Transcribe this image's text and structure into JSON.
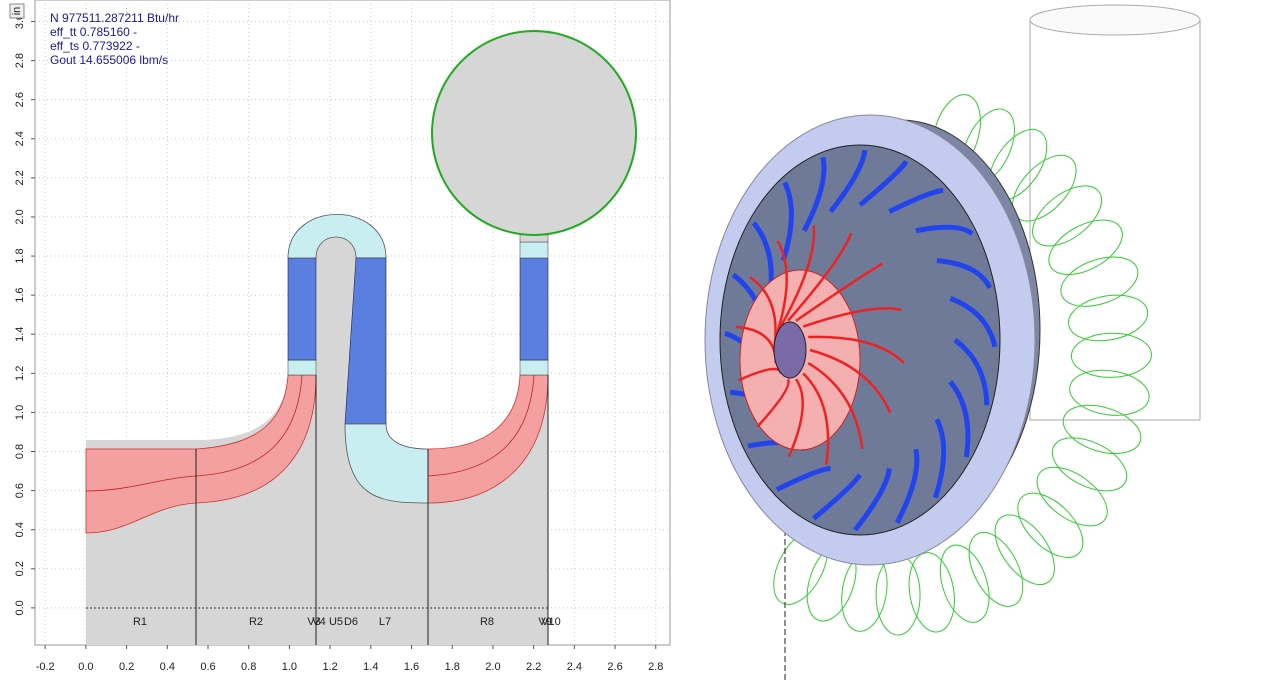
{
  "units": "in",
  "info": [
    "N 977511.287211 Btu/hr",
    "eff_tt 0.785160 -",
    "eff_ts 0.773922 -",
    "Gout 14.655006 lbm/s"
  ],
  "plot": {
    "xlim": [
      -0.25,
      2.87
    ],
    "ylim": [
      -0.19,
      3.11
    ],
    "xticks": [
      -0.2,
      {
        "value": 0,
        "label": "0.0"
      },
      0.2,
      0.4,
      0.6,
      0.8,
      {
        "value": 1,
        "label": "1.0"
      },
      1.2,
      1.4,
      1.6,
      1.8,
      {
        "value": 2,
        "label": "2.0"
      },
      2.2,
      2.4,
      2.6,
      2.8
    ],
    "yticks": [
      {
        "value": 0,
        "label": "0.0"
      },
      0.2,
      0.4,
      0.6,
      0.8,
      {
        "value": 1,
        "label": "1.0"
      },
      1.2,
      1.4,
      1.6,
      1.8,
      {
        "value": 2,
        "label": "2.0"
      },
      2.2,
      2.4,
      2.6,
      2.8,
      {
        "value": 3,
        "label": "3.0"
      }
    ],
    "components": [
      "R1",
      "R2",
      "V3",
      "V4",
      "U5",
      "D6",
      "L7",
      "R8",
      "V9",
      "V10"
    ]
  }
}
